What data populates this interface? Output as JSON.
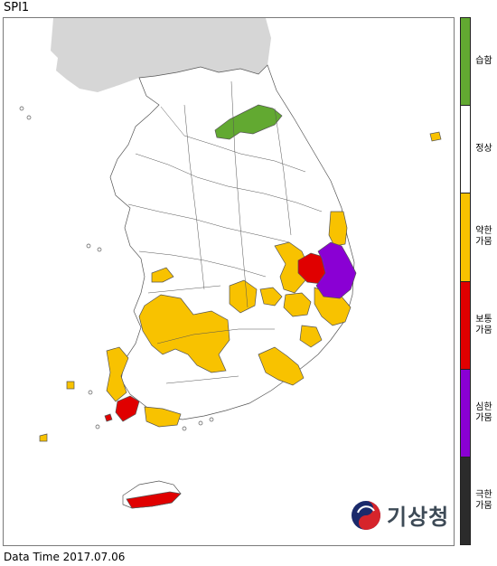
{
  "title": "SPI1",
  "footer": {
    "label": "Data Time",
    "date": "2017.07.06"
  },
  "logo": {
    "text": "기상청",
    "icon": "kma-taegeuk-logo-icon"
  },
  "legend": [
    {
      "label": "습함",
      "color": "#62a931"
    },
    {
      "label": "정상",
      "color": "#ffffff"
    },
    {
      "label": "약한\n가뭄",
      "color": "#f8c200"
    },
    {
      "label": "보통\n가뭄",
      "color": "#e00000"
    },
    {
      "label": "심한\n가뭄",
      "color": "#8a00d4"
    },
    {
      "label": "극한\n가뭄",
      "color": "#2b2b2b"
    }
  ],
  "colors": {
    "land_other": "#d6d6d6",
    "normal": "#ffffff",
    "wet": "#62a931",
    "mild_drought": "#f8c200",
    "moderate_drought": "#e00000",
    "severe_drought": "#8a00d4",
    "border": "#555555"
  }
}
